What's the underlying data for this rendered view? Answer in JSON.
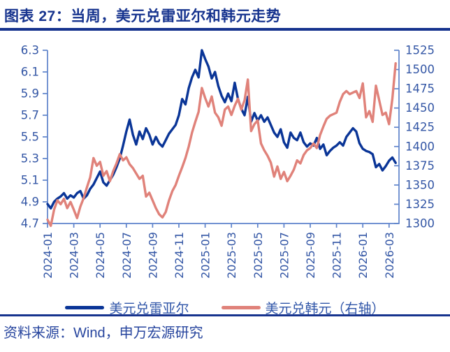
{
  "header": {
    "title": "图表 27：当周，美元兑雷亚尔和韩元走势"
  },
  "source": {
    "text": "资料来源：Wind，申万宏源研究"
  },
  "colors": {
    "navy_rule": "#16338E",
    "axis_line": "#5E83CB",
    "tick_label": "#3356A5",
    "series_blue": "#0A3597",
    "series_pink": "#E0827A"
  },
  "chart_data": {
    "type": "line",
    "title": "当周，美元兑雷亚尔和韩元走势",
    "grid": false,
    "legend_position": "bottom",
    "x_tick_labels": [
      "2024-01",
      "2024-03",
      "2024-05",
      "2024-07",
      "2024-09",
      "2024-11",
      "2025-01",
      "2025-03",
      "2025-05",
      "2025-07",
      "2025-09",
      "2025-11",
      "2026-01",
      "2026-03"
    ],
    "x_months_span": [
      0,
      26.5
    ],
    "left_axis": {
      "min": 4.7,
      "max": 6.3,
      "ticks": [
        6.3,
        6.1,
        5.9,
        5.7,
        5.5,
        5.3,
        5.1,
        4.9,
        4.7
      ]
    },
    "right_axis": {
      "min": 1300,
      "max": 1525,
      "ticks": [
        1525,
        1500,
        1475,
        1450,
        1425,
        1400,
        1375,
        1350,
        1325,
        1300
      ]
    },
    "series": [
      {
        "name": "美元兑雷亚尔",
        "axis": "left",
        "color": "#0A3597",
        "x_start_month": 0,
        "x_step_months": 0.25,
        "values": [
          4.88,
          4.84,
          4.9,
          4.93,
          4.95,
          4.98,
          4.93,
          4.96,
          4.94,
          4.98,
          5.0,
          4.93,
          4.96,
          5.02,
          5.06,
          5.12,
          5.18,
          5.08,
          5.05,
          5.1,
          5.15,
          5.22,
          5.3,
          5.42,
          5.55,
          5.66,
          5.52,
          5.43,
          5.55,
          5.48,
          5.58,
          5.52,
          5.43,
          5.5,
          5.44,
          5.41,
          5.47,
          5.53,
          5.57,
          5.61,
          5.7,
          5.85,
          5.8,
          5.95,
          6.05,
          6.12,
          6.05,
          6.3,
          6.22,
          6.15,
          6.04,
          6.1,
          5.97,
          5.88,
          5.82,
          5.9,
          5.83,
          6.0,
          5.85,
          5.76,
          5.7,
          5.87,
          5.64,
          5.72,
          5.65,
          5.7,
          5.64,
          5.68,
          5.61,
          5.54,
          5.5,
          5.57,
          5.45,
          5.4,
          5.54,
          5.49,
          5.47,
          5.54,
          5.45,
          5.41,
          5.44,
          5.42,
          5.49,
          5.39,
          5.43,
          5.33,
          5.37,
          5.4,
          5.42,
          5.45,
          5.42,
          5.5,
          5.54,
          5.58,
          5.55,
          5.44,
          5.39,
          5.37,
          5.36,
          5.34,
          5.22,
          5.25,
          5.19,
          5.23,
          5.28,
          5.31,
          5.26
        ]
      },
      {
        "name": "美元兑韩元（右轴）",
        "axis": "right",
        "color": "#E0827A",
        "x_start_month": 0,
        "x_step_months": 0.25,
        "values": [
          1305,
          1297,
          1318,
          1330,
          1325,
          1332,
          1320,
          1328,
          1318,
          1307,
          1322,
          1333,
          1347,
          1360,
          1385,
          1375,
          1380,
          1362,
          1368,
          1355,
          1368,
          1378,
          1390,
          1382,
          1386,
          1377,
          1372,
          1365,
          1358,
          1362,
          1335,
          1340,
          1330,
          1320,
          1312,
          1308,
          1315,
          1330,
          1342,
          1350,
          1362,
          1373,
          1385,
          1400,
          1418,
          1432,
          1445,
          1476,
          1463,
          1452,
          1465,
          1444,
          1438,
          1427,
          1448,
          1452,
          1441,
          1453,
          1462,
          1448,
          1460,
          1487,
          1420,
          1429,
          1434,
          1404,
          1395,
          1388,
          1379,
          1361,
          1374,
          1358,
          1367,
          1355,
          1362,
          1370,
          1382,
          1378,
          1389,
          1395,
          1398,
          1404,
          1398,
          1415,
          1426,
          1436,
          1440,
          1442,
          1444,
          1458,
          1468,
          1472,
          1468,
          1470,
          1472,
          1463,
          1482,
          1438,
          1446,
          1432,
          1479,
          1460,
          1441,
          1444,
          1429,
          1462,
          1508
        ]
      }
    ]
  }
}
